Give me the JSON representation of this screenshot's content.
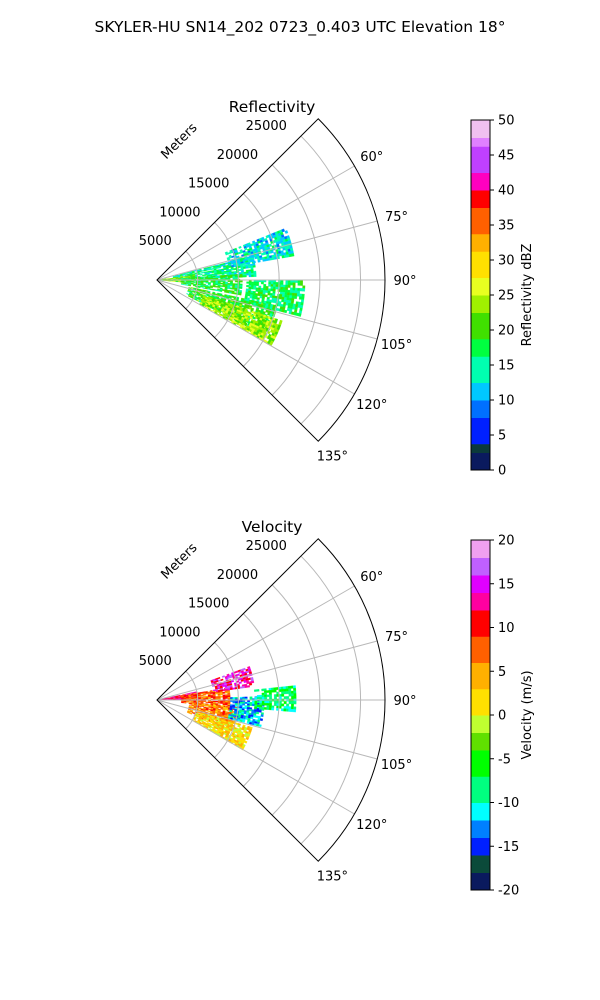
{
  "suptitle": "SKYLER-HU  SN14_202  0723_0.403 UTC Elevation 18°",
  "chart_data": [
    {
      "type": "polar-sector-radar",
      "title": "Reflectivity",
      "radial_label": "Meters",
      "r_ticks": [
        "5000",
        "10000",
        "15000",
        "20000",
        "25000"
      ],
      "theta_ticks": [
        "60°",
        "75°",
        "90°",
        "105°",
        "120°",
        "135°"
      ],
      "theta_range_deg": [
        45,
        135
      ],
      "r_range_m": [
        0,
        28000
      ],
      "grid": true,
      "colorbar": {
        "label": "Reflectivity dBZ",
        "range": [
          0,
          50
        ],
        "ticks": [
          "0",
          "5",
          "10",
          "15",
          "20",
          "25",
          "30",
          "35",
          "40",
          "45",
          "50"
        ]
      },
      "echo_regions": [
        {
          "az_range": [
            76,
            88
          ],
          "r_range": [
            2000,
            12000
          ],
          "dbz": 15
        },
        {
          "az_range": [
            82,
            95
          ],
          "r_range": [
            500,
            4500
          ],
          "dbz": 22
        },
        {
          "az_range": [
            86,
            100
          ],
          "r_range": [
            3000,
            10500
          ],
          "dbz": 18
        },
        {
          "az_range": [
            102,
            117
          ],
          "r_range": [
            4000,
            15000
          ],
          "dbz": 19
        },
        {
          "az_range": [
            108,
            120
          ],
          "r_range": [
            6000,
            16000
          ],
          "dbz": 24
        },
        {
          "az_range": [
            68,
            80
          ],
          "r_range": [
            9000,
            17000
          ],
          "dbz": 13
        },
        {
          "az_range": [
            90,
            104
          ],
          "r_range": [
            11000,
            18000
          ],
          "dbz": 17
        }
      ]
    },
    {
      "type": "polar-sector-radar",
      "title": "Velocity",
      "radial_label": "Meters",
      "r_ticks": [
        "5000",
        "10000",
        "15000",
        "20000",
        "25000"
      ],
      "theta_ticks": [
        "60°",
        "75°",
        "90°",
        "105°",
        "120°",
        "135°"
      ],
      "theta_range_deg": [
        45,
        135
      ],
      "r_range_m": [
        0,
        28000
      ],
      "grid": true,
      "colorbar": {
        "label": "Velocity (m/s)",
        "range": [
          -20,
          20
        ],
        "ticks": [
          "-20",
          "-15",
          "-10",
          "-5",
          "0",
          "5",
          "10",
          "15",
          "20"
        ]
      },
      "echo_regions": [
        {
          "az_range": [
            78,
            90
          ],
          "r_range": [
            500,
            5000
          ],
          "vel": 12
        },
        {
          "az_range": [
            80,
            96
          ],
          "r_range": [
            3000,
            9000
          ],
          "vel": 8
        },
        {
          "az_range": [
            95,
            112
          ],
          "r_range": [
            4000,
            10000
          ],
          "vel": 6
        },
        {
          "az_range": [
            106,
            120
          ],
          "r_range": [
            5000,
            12000
          ],
          "vel": 2
        },
        {
          "az_range": [
            88,
            104
          ],
          "r_range": [
            9000,
            13000
          ],
          "vel": -12
        },
        {
          "az_range": [
            70,
            82
          ],
          "r_range": [
            7000,
            12000
          ],
          "vel": 14
        },
        {
          "az_range": [
            84,
            94
          ],
          "r_range": [
            12000,
            17000
          ],
          "vel": -8
        }
      ]
    }
  ]
}
